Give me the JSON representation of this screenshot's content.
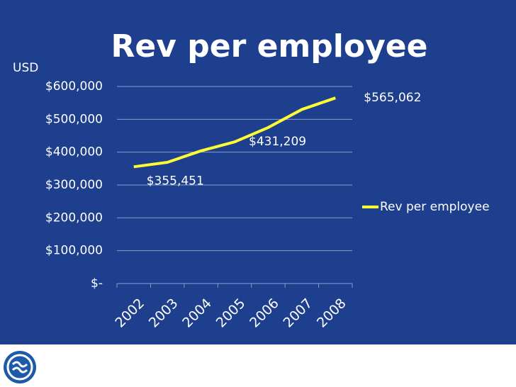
{
  "chart_data": {
    "type": "line",
    "title": "Rev per employee",
    "y_label": "USD",
    "categories": [
      "2002",
      "2003",
      "2004",
      "2005",
      "2006",
      "2007",
      "2008"
    ],
    "series": [
      {
        "name": "Rev per employee",
        "color": "#ffff33",
        "values": [
          355451,
          369000,
          404000,
          431209,
          475000,
          530000,
          565062
        ],
        "value_labels": [
          "$355,451",
          null,
          null,
          "$431,209",
          null,
          null,
          "$565,062"
        ]
      }
    ],
    "ylim": [
      0,
      600000
    ],
    "yticks": [
      {
        "value": 0,
        "label": "$-"
      },
      {
        "value": 100000,
        "label": "$100,000"
      },
      {
        "value": 200000,
        "label": "$200,000"
      },
      {
        "value": 300000,
        "label": "$300,000"
      },
      {
        "value": 400000,
        "label": "$400,000"
      },
      {
        "value": 500000,
        "label": "$500,000"
      },
      {
        "value": 600000,
        "label": "$600,000"
      }
    ],
    "grid": true,
    "legend": "right"
  }
}
